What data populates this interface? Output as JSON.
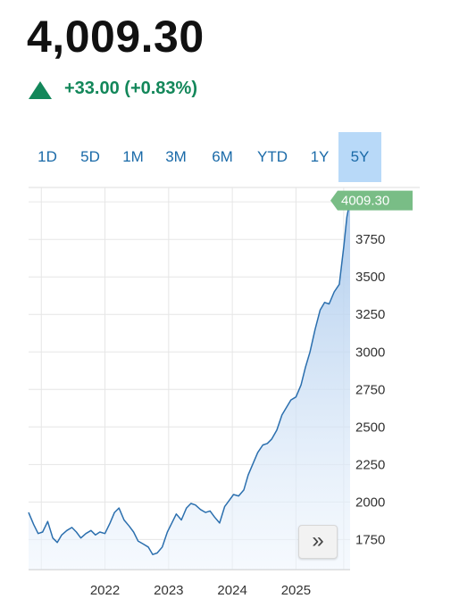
{
  "quote": {
    "price": "4,009.30",
    "change": "+33.00 (+0.83%)",
    "direction": "up",
    "colors": {
      "up": "#13875a",
      "accent": "#1a6aa8",
      "active_tab_bg": "#b8d9f8"
    }
  },
  "tabs": [
    {
      "label": "1D",
      "active": false
    },
    {
      "label": "5D",
      "active": false
    },
    {
      "label": "1M",
      "active": false
    },
    {
      "label": "3M",
      "active": false
    },
    {
      "label": "6M",
      "active": false
    },
    {
      "label": "YTD",
      "active": false
    },
    {
      "label": "1Y",
      "active": false
    },
    {
      "label": "5Y",
      "active": true
    }
  ],
  "expand_icon": "double-chevron-right-icon",
  "expand_glyph": "»",
  "chart_data": {
    "type": "area",
    "current_value_label": "4009.30",
    "x_tick_labels": [
      "2022",
      "2023",
      "2024",
      "2025"
    ],
    "x_tick_values": [
      2022.0,
      2023.0,
      2024.0,
      2025.0
    ],
    "y_tick_labels": [
      "3750",
      "3500",
      "3250",
      "3000",
      "2750",
      "2500",
      "2250",
      "2000",
      "1750"
    ],
    "y_tick_values": [
      3750,
      3500,
      3250,
      3000,
      2750,
      2500,
      2250,
      2000,
      1750
    ],
    "xlim": [
      2020.8,
      2025.85
    ],
    "ylim": [
      1550,
      4120
    ],
    "grid": true,
    "series": [
      {
        "x": [
          2020.8,
          2020.88,
          2020.95,
          2021.02,
          2021.1,
          2021.18,
          2021.25,
          2021.32,
          2021.4,
          2021.48,
          2021.55,
          2021.62,
          2021.7,
          2021.78,
          2021.85,
          2021.92,
          2022.0,
          2022.08,
          2022.15,
          2022.22,
          2022.3,
          2022.38,
          2022.45,
          2022.52,
          2022.6,
          2022.68,
          2022.75,
          2022.82,
          2022.9,
          2022.98,
          2023.05,
          2023.12,
          2023.2,
          2023.28,
          2023.35,
          2023.42,
          2023.5,
          2023.58,
          2023.65,
          2023.72,
          2023.8,
          2023.88,
          2023.95,
          2024.02,
          2024.1,
          2024.18,
          2024.25,
          2024.32,
          2024.4,
          2024.48,
          2024.55,
          2024.62,
          2024.7,
          2024.78,
          2024.85,
          2024.92,
          2025.0,
          2025.08,
          2025.15,
          2025.22,
          2025.3,
          2025.38,
          2025.45,
          2025.52,
          2025.6,
          2025.68,
          2025.75,
          2025.8,
          2025.85
        ],
        "y": [
          1930,
          1850,
          1790,
          1800,
          1870,
          1760,
          1730,
          1780,
          1810,
          1830,
          1800,
          1760,
          1790,
          1810,
          1780,
          1800,
          1790,
          1860,
          1930,
          1960,
          1880,
          1840,
          1800,
          1740,
          1720,
          1700,
          1650,
          1660,
          1700,
          1800,
          1860,
          1920,
          1880,
          1960,
          1990,
          1980,
          1950,
          1930,
          1940,
          1900,
          1860,
          1970,
          2010,
          2050,
          2040,
          2080,
          2180,
          2250,
          2330,
          2380,
          2390,
          2420,
          2480,
          2580,
          2630,
          2680,
          2700,
          2780,
          2900,
          3000,
          3150,
          3280,
          3330,
          3320,
          3400,
          3450,
          3700,
          3900,
          4009
        ]
      }
    ]
  }
}
